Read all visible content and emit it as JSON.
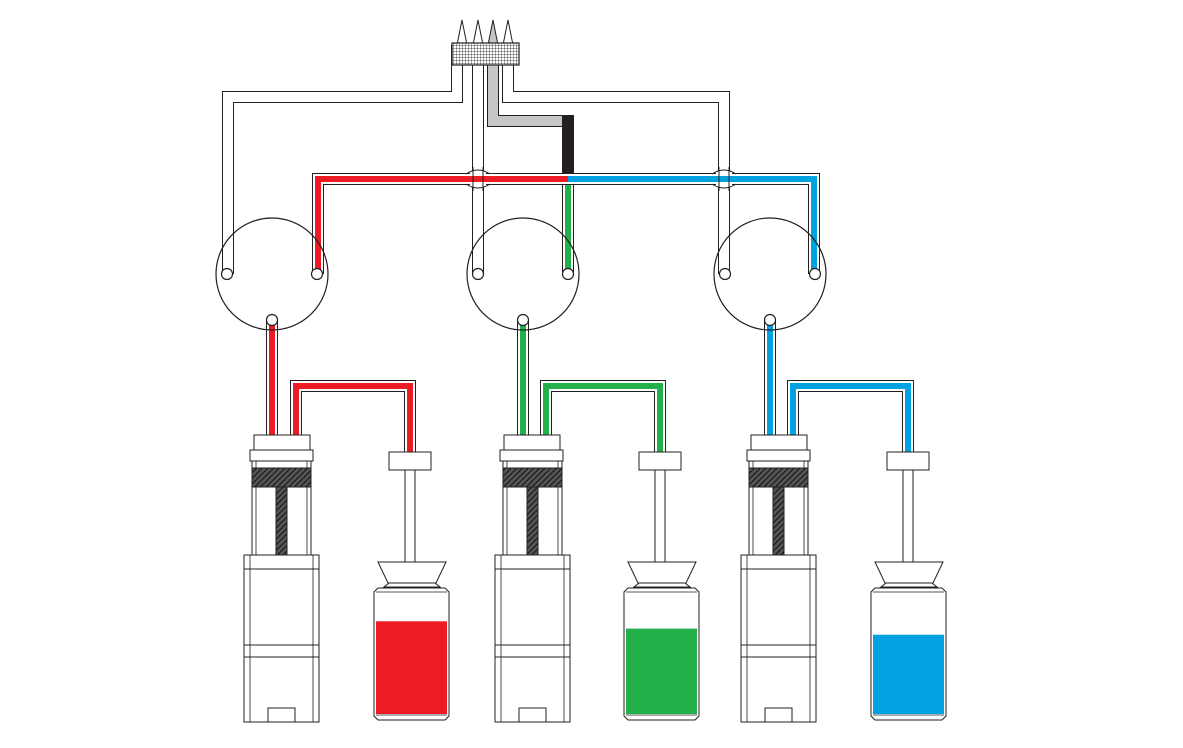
{
  "colors": {
    "red": "#ed1c24",
    "green": "#22b04b",
    "blue": "#00a2e2",
    "black": "#231f20",
    "gray": "#c6c6c6",
    "outline": "#231f20",
    "background": "#ffffff"
  },
  "channels": [
    {
      "id": "red",
      "color": "#ed1c24",
      "vial_fill_level": 0.76
    },
    {
      "id": "green",
      "color": "#22b04b",
      "vial_fill_level": 0.7
    },
    {
      "id": "blue",
      "color": "#00a2e2",
      "vial_fill_level": 0.65
    }
  ],
  "components": {
    "manifold": "multi-tip-nozzle",
    "valves": 3,
    "syringe-pumps": 3,
    "reservoir-vials": 3
  }
}
